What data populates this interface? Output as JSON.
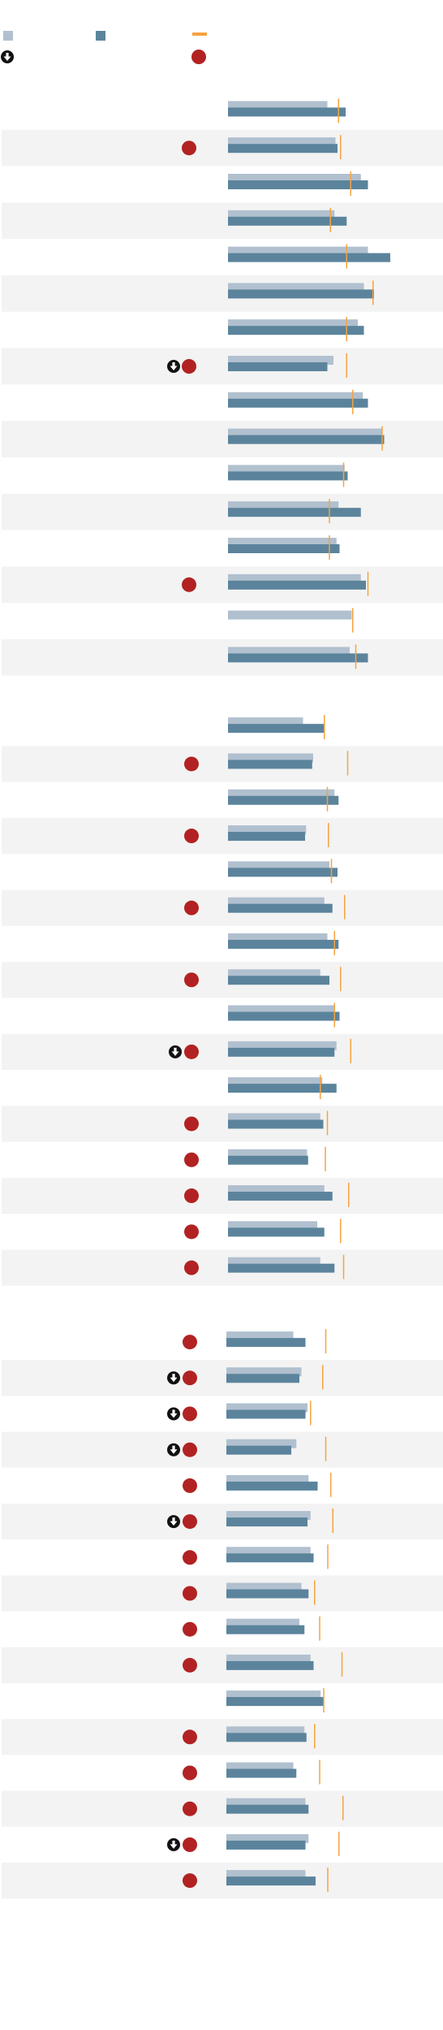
{
  "legend": {
    "items": [
      {
        "key": "series_1",
        "color": "#b1c0cf",
        "shape": "square"
      },
      {
        "key": "series_2",
        "color": "#5b849c",
        "shape": "square"
      },
      {
        "key": "target",
        "color": "#f5a340",
        "shape": "line"
      },
      {
        "key": "decline",
        "shape": "down-arrow-circle",
        "color": "#111111"
      },
      {
        "key": "flag",
        "shape": "dot",
        "color": "#b22222"
      }
    ]
  },
  "colors": {
    "series_1": "#b1c0cf",
    "series_2": "#5b849c",
    "target": "#f5a340",
    "flag": "#b22222",
    "arrow": "#111111",
    "stripe": "#f3f3f3"
  },
  "chart_data": [
    {
      "type": "bar",
      "panel": 1,
      "rows": [
        {
          "s1": 0.49,
          "s2": 0.58,
          "target": 0.545,
          "flag": false,
          "arrow": false
        },
        {
          "s1": 0.53,
          "s2": 0.54,
          "target": 0.555,
          "flag": true,
          "arrow": false
        },
        {
          "s1": 0.655,
          "s2": 0.69,
          "target": 0.605,
          "flag": false,
          "arrow": false
        },
        {
          "s1": 0.525,
          "s2": 0.585,
          "target": 0.505,
          "flag": false,
          "arrow": false
        },
        {
          "s1": 0.69,
          "s2": 0.8,
          "target": 0.585,
          "flag": false,
          "arrow": false
        },
        {
          "s1": 0.67,
          "s2": 0.72,
          "target": 0.715,
          "flag": false,
          "arrow": false
        },
        {
          "s1": 0.64,
          "s2": 0.67,
          "target": 0.585,
          "flag": false,
          "arrow": false
        },
        {
          "s1": 0.52,
          "s2": 0.49,
          "target": 0.585,
          "flag": true,
          "arrow": true
        },
        {
          "s1": 0.665,
          "s2": 0.69,
          "target": 0.615,
          "flag": false,
          "arrow": false
        },
        {
          "s1": 0.76,
          "s2": 0.77,
          "target": 0.76,
          "flag": false,
          "arrow": false
        },
        {
          "s1": 0.575,
          "s2": 0.59,
          "target": 0.57,
          "flag": false,
          "arrow": false
        },
        {
          "s1": 0.545,
          "s2": 0.655,
          "target": 0.5,
          "flag": false,
          "arrow": false
        },
        {
          "s1": 0.535,
          "s2": 0.55,
          "target": 0.5,
          "flag": false,
          "arrow": false
        },
        {
          "s1": 0.655,
          "s2": 0.68,
          "target": 0.69,
          "flag": true,
          "arrow": false
        },
        {
          "s1": 0.61,
          "s2": null,
          "target": 0.615,
          "flag": false,
          "arrow": false
        },
        {
          "s1": 0.6,
          "s2": 0.69,
          "target": 0.63,
          "flag": false,
          "arrow": false
        }
      ]
    },
    {
      "type": "bar",
      "panel": 2,
      "rows": [
        {
          "s1": 0.37,
          "s2": 0.475,
          "target": 0.475,
          "flag": false,
          "arrow": false
        },
        {
          "s1": 0.42,
          "s2": 0.415,
          "target": 0.59,
          "flag": true,
          "arrow": false
        },
        {
          "s1": 0.525,
          "s2": 0.545,
          "target": 0.49,
          "flag": false,
          "arrow": false
        },
        {
          "s1": 0.385,
          "s2": 0.38,
          "target": 0.495,
          "flag": true,
          "arrow": false
        },
        {
          "s1": 0.5,
          "s2": 0.54,
          "target": 0.51,
          "flag": false,
          "arrow": false
        },
        {
          "s1": 0.475,
          "s2": 0.515,
          "target": 0.575,
          "flag": true,
          "arrow": false
        },
        {
          "s1": 0.49,
          "s2": 0.545,
          "target": 0.525,
          "flag": false,
          "arrow": false
        },
        {
          "s1": 0.455,
          "s2": 0.5,
          "target": 0.555,
          "flag": true,
          "arrow": false
        },
        {
          "s1": 0.525,
          "s2": 0.55,
          "target": 0.525,
          "flag": false,
          "arrow": false
        },
        {
          "s1": 0.535,
          "s2": 0.525,
          "target": 0.605,
          "flag": true,
          "arrow": true
        },
        {
          "s1": 0.465,
          "s2": 0.535,
          "target": 0.455,
          "flag": false,
          "arrow": false
        },
        {
          "s1": 0.455,
          "s2": 0.47,
          "target": 0.49,
          "flag": true,
          "arrow": false
        },
        {
          "s1": 0.39,
          "s2": 0.395,
          "target": 0.48,
          "flag": true,
          "arrow": false
        },
        {
          "s1": 0.475,
          "s2": 0.515,
          "target": 0.595,
          "flag": true,
          "arrow": false
        },
        {
          "s1": 0.44,
          "s2": 0.475,
          "target": 0.555,
          "flag": true,
          "arrow": false
        },
        {
          "s1": 0.455,
          "s2": 0.525,
          "target": 0.57,
          "flag": true,
          "arrow": false
        }
      ]
    },
    {
      "type": "bar",
      "panel": 3,
      "rows": [
        {
          "s1": 0.33,
          "s2": 0.39,
          "target": 0.49,
          "flag": true,
          "arrow": false
        },
        {
          "s1": 0.37,
          "s2": 0.36,
          "target": 0.475,
          "flag": true,
          "arrow": true
        },
        {
          "s1": 0.4,
          "s2": 0.39,
          "target": 0.415,
          "flag": true,
          "arrow": true
        },
        {
          "s1": 0.345,
          "s2": 0.32,
          "target": 0.49,
          "flag": true,
          "arrow": true
        },
        {
          "s1": 0.405,
          "s2": 0.45,
          "target": 0.515,
          "flag": true,
          "arrow": false
        },
        {
          "s1": 0.415,
          "s2": 0.4,
          "target": 0.525,
          "flag": true,
          "arrow": true
        },
        {
          "s1": 0.415,
          "s2": 0.43,
          "target": 0.5,
          "flag": true,
          "arrow": false
        },
        {
          "s1": 0.37,
          "s2": 0.405,
          "target": 0.435,
          "flag": true,
          "arrow": false
        },
        {
          "s1": 0.36,
          "s2": 0.385,
          "target": 0.46,
          "flag": true,
          "arrow": false
        },
        {
          "s1": 0.415,
          "s2": 0.43,
          "target": 0.57,
          "flag": true,
          "arrow": false
        },
        {
          "s1": 0.465,
          "s2": 0.48,
          "target": 0.48,
          "flag": false,
          "arrow": false
        },
        {
          "s1": 0.385,
          "s2": 0.395,
          "target": 0.435,
          "flag": true,
          "arrow": false
        },
        {
          "s1": 0.33,
          "s2": 0.345,
          "target": 0.46,
          "flag": true,
          "arrow": false
        },
        {
          "s1": 0.39,
          "s2": 0.405,
          "target": 0.575,
          "flag": true,
          "arrow": false
        },
        {
          "s1": 0.405,
          "s2": 0.39,
          "target": 0.555,
          "flag": true,
          "arrow": true
        },
        {
          "s1": 0.39,
          "s2": 0.44,
          "target": 0.5,
          "flag": true,
          "arrow": false
        }
      ]
    }
  ]
}
